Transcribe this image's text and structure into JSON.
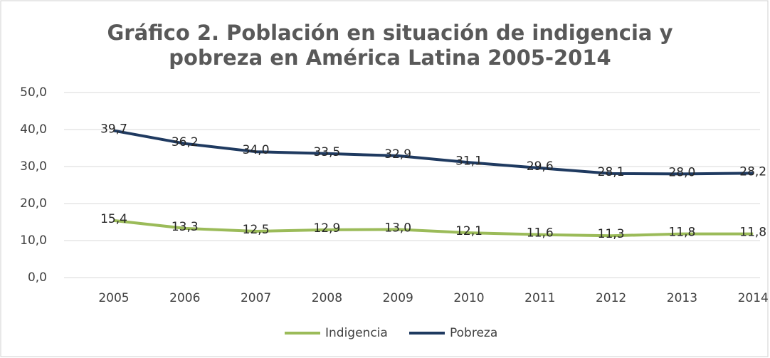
{
  "chart_data": {
    "type": "line",
    "title": [
      "Gráfico 2. Población en situación de indigencia y",
      "pobreza en América Latina 2005-2014"
    ],
    "categories": [
      "2005",
      "2006",
      "2007",
      "2008",
      "2009",
      "2010",
      "2011",
      "2012",
      "2013",
      "2014"
    ],
    "series": [
      {
        "name": "Indigencia",
        "color": "#9bbb59",
        "values": [
          15.4,
          13.3,
          12.5,
          12.9,
          13.0,
          12.1,
          11.6,
          11.3,
          11.8,
          11.8
        ],
        "value_labels": [
          "15,4",
          "13,3",
          "12,5",
          "12,9",
          "13,0",
          "12,1",
          "11,6",
          "11,3",
          "11,8",
          "11,8"
        ]
      },
      {
        "name": "Pobreza",
        "color": "#1f3a60",
        "values": [
          39.7,
          36.2,
          34.0,
          33.5,
          32.9,
          31.1,
          29.6,
          28.1,
          28.0,
          28.2
        ],
        "value_labels": [
          "39,7",
          "36,2",
          "34,0",
          "33,5",
          "32,9",
          "31,1",
          "29,6",
          "28,1",
          "28,0",
          "28,2"
        ]
      }
    ],
    "ylim": [
      0,
      50
    ],
    "yticks": [
      {
        "value": 0,
        "label": "0,0"
      },
      {
        "value": 10,
        "label": "10,0"
      },
      {
        "value": 20,
        "label": "20,0"
      },
      {
        "value": 30,
        "label": "30,0"
      },
      {
        "value": 40,
        "label": "40,0"
      },
      {
        "value": 50,
        "label": "50,0"
      }
    ],
    "grid": true,
    "legend": "bottom"
  }
}
